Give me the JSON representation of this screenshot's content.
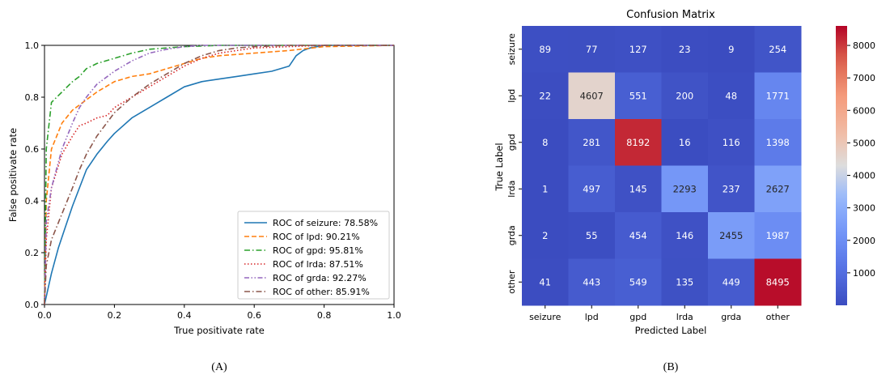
{
  "chart_data": [
    {
      "type": "line",
      "xlabel": "True positivate rate",
      "ylabel": "False positivate rate",
      "xlim": [
        0,
        1
      ],
      "ylim": [
        0,
        1
      ],
      "xticks": [
        "0.0",
        "0.2",
        "0.4",
        "0.6",
        "0.8",
        "1.0"
      ],
      "yticks": [
        "0.0",
        "0.2",
        "0.4",
        "0.6",
        "0.8",
        "1.0"
      ],
      "legend_position": "lower-right",
      "panel_label": "(A)",
      "series": [
        {
          "name": "ROC of seizure: 78.58%",
          "color": "#1f77b4",
          "dash": "solid",
          "x": [
            0,
            0.01,
            0.02,
            0.04,
            0.06,
            0.08,
            0.1,
            0.12,
            0.15,
            0.18,
            0.2,
            0.25,
            0.3,
            0.35,
            0.4,
            0.45,
            0.5,
            0.55,
            0.6,
            0.65,
            0.7,
            0.72,
            0.74,
            0.76,
            0.8,
            0.85,
            0.9,
            1.0
          ],
          "y": [
            0,
            0.06,
            0.12,
            0.22,
            0.3,
            0.38,
            0.45,
            0.52,
            0.58,
            0.63,
            0.66,
            0.72,
            0.76,
            0.8,
            0.84,
            0.86,
            0.87,
            0.88,
            0.89,
            0.9,
            0.92,
            0.96,
            0.98,
            0.99,
            1.0,
            1.0,
            1.0,
            1.0
          ]
        },
        {
          "name": "ROC of lpd: 90.21%",
          "color": "#ff7f0e",
          "dash": "dashed",
          "x": [
            0,
            0.005,
            0.02,
            0.05,
            0.08,
            0.1,
            0.12,
            0.15,
            0.2,
            0.25,
            0.3,
            0.35,
            0.4,
            0.45,
            0.5,
            0.6,
            0.7,
            0.8,
            1.0
          ],
          "y": [
            0,
            0.4,
            0.6,
            0.7,
            0.75,
            0.77,
            0.79,
            0.82,
            0.86,
            0.88,
            0.89,
            0.91,
            0.93,
            0.95,
            0.96,
            0.97,
            0.98,
            0.995,
            1.0
          ]
        },
        {
          "name": "ROC of gpd: 95.81%",
          "color": "#2ca02c",
          "dash": "dashdot",
          "x": [
            0,
            0.005,
            0.02,
            0.05,
            0.08,
            0.1,
            0.12,
            0.15,
            0.2,
            0.25,
            0.3,
            0.35,
            0.4,
            0.5,
            0.6,
            1.0
          ],
          "y": [
            0,
            0.6,
            0.78,
            0.82,
            0.86,
            0.88,
            0.91,
            0.93,
            0.95,
            0.97,
            0.985,
            0.99,
            0.995,
            1.0,
            1.0,
            1.0
          ]
        },
        {
          "name": "ROC of lrda: 87.51%",
          "color": "#d62728",
          "dash": "dotted",
          "x": [
            0,
            0.005,
            0.02,
            0.05,
            0.08,
            0.1,
            0.12,
            0.15,
            0.18,
            0.2,
            0.25,
            0.3,
            0.35,
            0.4,
            0.45,
            0.5,
            0.55,
            0.6,
            0.7,
            0.8,
            1.0
          ],
          "y": [
            0,
            0.25,
            0.45,
            0.58,
            0.65,
            0.69,
            0.7,
            0.72,
            0.73,
            0.76,
            0.8,
            0.84,
            0.88,
            0.92,
            0.95,
            0.97,
            0.98,
            0.99,
            0.995,
            1.0,
            1.0
          ]
        },
        {
          "name": "ROC of grda: 92.27%",
          "color": "#9467bd",
          "dash": "dashdotdot",
          "x": [
            0,
            0.005,
            0.02,
            0.05,
            0.08,
            0.1,
            0.12,
            0.15,
            0.2,
            0.25,
            0.3,
            0.35,
            0.4,
            0.45,
            0.5,
            0.6,
            1.0
          ],
          "y": [
            0,
            0.32,
            0.45,
            0.6,
            0.7,
            0.76,
            0.8,
            0.85,
            0.9,
            0.94,
            0.97,
            0.985,
            0.995,
            1.0,
            1.0,
            1.0,
            1.0
          ]
        },
        {
          "name": "ROC of other: 85.91%",
          "color": "#8c564b",
          "dash": "dashdot",
          "x": [
            0,
            0.005,
            0.02,
            0.05,
            0.08,
            0.1,
            0.12,
            0.15,
            0.2,
            0.25,
            0.3,
            0.35,
            0.4,
            0.45,
            0.5,
            0.55,
            0.6,
            0.7,
            0.8,
            1.0
          ],
          "y": [
            0,
            0.15,
            0.25,
            0.35,
            0.45,
            0.52,
            0.58,
            0.65,
            0.74,
            0.8,
            0.85,
            0.89,
            0.93,
            0.96,
            0.98,
            0.99,
            0.995,
            1.0,
            1.0,
            1.0
          ]
        }
      ]
    },
    {
      "type": "heatmap",
      "title": "Confusion Matrix",
      "xlabel": "Predicted Label",
      "ylabel": "True Label",
      "panel_label": "(B)",
      "x_categories": [
        "seizure",
        "lpd",
        "gpd",
        "lrda",
        "grda",
        "other"
      ],
      "y_categories": [
        "seizure",
        "lpd",
        "gpd",
        "lrda",
        "grda",
        "other"
      ],
      "values": [
        [
          89,
          77,
          127,
          23,
          9,
          254
        ],
        [
          22,
          4607,
          551,
          200,
          48,
          1771
        ],
        [
          8,
          281,
          8192,
          16,
          116,
          1398
        ],
        [
          1,
          497,
          145,
          2293,
          237,
          2627
        ],
        [
          2,
          55,
          454,
          146,
          2455,
          1987
        ],
        [
          41,
          443,
          549,
          135,
          449,
          8495
        ]
      ],
      "colorbar_ticks": [
        1000,
        2000,
        3000,
        4000,
        5000,
        6000,
        7000,
        8000
      ],
      "colormap": "coolwarm",
      "vmin": 0,
      "vmax": 8600
    }
  ]
}
